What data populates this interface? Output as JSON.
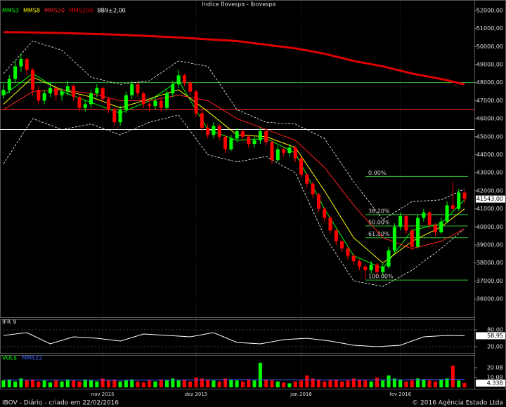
{
  "chart_data": [
    {
      "type": "candlestick",
      "title": "Indice Bovespa - Ibovespa",
      "up_color": "#00ff00",
      "down_color": "#ff0000",
      "xlim": [
        0,
        79
      ],
      "ylim": [
        35500,
        52500
      ],
      "xticks": [
        {
          "value": 17,
          "label": "nov 2015"
        },
        {
          "value": 33,
          "label": "dez 2015"
        },
        {
          "value": 51,
          "label": "jan 2016"
        },
        {
          "value": 68,
          "label": "fev 2016"
        }
      ],
      "yticks": [
        {
          "value": 52000,
          "label": "52000,00"
        },
        {
          "value": 51000,
          "label": "51000,00"
        },
        {
          "value": 50000,
          "label": "50000,00"
        },
        {
          "value": 49000,
          "label": "49000,00"
        },
        {
          "value": 48000,
          "label": "48000,00"
        },
        {
          "value": 47000,
          "label": "47000,00"
        },
        {
          "value": 46000,
          "label": "46000,00"
        },
        {
          "value": 45000,
          "label": "45000,00"
        },
        {
          "value": 44000,
          "label": "44000,00"
        },
        {
          "value": 43000,
          "label": "43000,00"
        },
        {
          "value": 42000,
          "label": "42000,00"
        },
        {
          "value": 41000,
          "label": "41000,00"
        },
        {
          "value": 40000,
          "label": "40000,00"
        },
        {
          "value": 39000,
          "label": "39000,00"
        },
        {
          "value": 38000,
          "label": "38000,00"
        },
        {
          "value": 37000,
          "label": "37000,00"
        },
        {
          "value": 36000,
          "label": "36000,00"
        }
      ],
      "last_label": "41543,00",
      "ohlc": [
        [
          47300,
          47900,
          47100,
          47600
        ],
        [
          47600,
          48400,
          47400,
          48200
        ],
        [
          48200,
          49200,
          48000,
          48900
        ],
        [
          48900,
          49600,
          48600,
          49300
        ],
        [
          49300,
          49400,
          48400,
          48700
        ],
        [
          48700,
          48800,
          47300,
          47600
        ],
        [
          47600,
          47800,
          46800,
          47000
        ],
        [
          47000,
          47600,
          46800,
          47400
        ],
        [
          47400,
          48000,
          47200,
          47700
        ],
        [
          47700,
          47800,
          47000,
          47300
        ],
        [
          47300,
          47700,
          47000,
          47500
        ],
        [
          47500,
          48100,
          47300,
          47800
        ],
        [
          47800,
          47900,
          47000,
          47200
        ],
        [
          47200,
          47300,
          46400,
          46600
        ],
        [
          46600,
          47000,
          46400,
          46800
        ],
        [
          46800,
          47600,
          46600,
          47400
        ],
        [
          47400,
          47900,
          47200,
          47700
        ],
        [
          47700,
          47800,
          46900,
          47100
        ],
        [
          47100,
          47200,
          46300,
          46500
        ],
        [
          46500,
          46600,
          45600,
          45800
        ],
        [
          45800,
          46700,
          45600,
          46500
        ],
        [
          46500,
          47500,
          46300,
          47300
        ],
        [
          47300,
          48100,
          47100,
          47900
        ],
        [
          47900,
          48000,
          47200,
          47400
        ],
        [
          47400,
          47500,
          46600,
          46800
        ],
        [
          46800,
          47000,
          46400,
          46700
        ],
        [
          46700,
          47200,
          46500,
          47000
        ],
        [
          47000,
          47100,
          46400,
          46600
        ],
        [
          46600,
          47600,
          46500,
          47400
        ],
        [
          47400,
          48100,
          47200,
          47900
        ],
        [
          47900,
          48700,
          47700,
          48400
        ],
        [
          48400,
          48500,
          47800,
          48000
        ],
        [
          48000,
          48100,
          47300,
          47500
        ],
        [
          47500,
          47600,
          46100,
          46300
        ],
        [
          46300,
          46500,
          45300,
          45500
        ],
        [
          45500,
          45700,
          44900,
          45100
        ],
        [
          45100,
          45800,
          44900,
          45600
        ],
        [
          45600,
          45700,
          44800,
          45000
        ],
        [
          45000,
          45100,
          44100,
          44300
        ],
        [
          44300,
          45100,
          44200,
          44900
        ],
        [
          44900,
          45500,
          44700,
          45300
        ],
        [
          45300,
          45400,
          44800,
          45000
        ],
        [
          45000,
          45100,
          44400,
          44600
        ],
        [
          44600,
          45000,
          44400,
          44800
        ],
        [
          44800,
          45500,
          44600,
          45300
        ],
        [
          45300,
          45400,
          44500,
          44700
        ],
        [
          44700,
          44800,
          43500,
          43700
        ],
        [
          43700,
          44500,
          43600,
          44300
        ],
        [
          44300,
          44400,
          43900,
          44100
        ],
        [
          44100,
          44600,
          43900,
          44400
        ],
        [
          44400,
          44500,
          43600,
          43800
        ],
        [
          43800,
          43900,
          42700,
          42900
        ],
        [
          42900,
          43000,
          42200,
          42400
        ],
        [
          42400,
          42500,
          41600,
          41800
        ],
        [
          41800,
          41900,
          40800,
          41000
        ],
        [
          41000,
          41100,
          40300,
          40500
        ],
        [
          40500,
          40600,
          39600,
          39800
        ],
        [
          39800,
          39900,
          39000,
          39200
        ],
        [
          39200,
          39300,
          38600,
          38800
        ],
        [
          38800,
          38900,
          38200,
          38400
        ],
        [
          38400,
          38500,
          37900,
          38100
        ],
        [
          38100,
          38200,
          37600,
          37800
        ],
        [
          37800,
          37900,
          37100,
          37600
        ],
        [
          37600,
          38100,
          37400,
          37900
        ],
        [
          37900,
          38000,
          37300,
          37500
        ],
        [
          37500,
          38000,
          37300,
          37800
        ],
        [
          37800,
          38900,
          37700,
          38700
        ],
        [
          38700,
          40200,
          38600,
          40000
        ],
        [
          40000,
          40800,
          39800,
          40600
        ],
        [
          40600,
          40700,
          39600,
          39800
        ],
        [
          39800,
          39900,
          38700,
          38900
        ],
        [
          38900,
          40700,
          38800,
          40500
        ],
        [
          40500,
          41000,
          40300,
          40800
        ],
        [
          40800,
          40900,
          39900,
          40100
        ],
        [
          40100,
          40200,
          39500,
          39700
        ],
        [
          39700,
          40500,
          39600,
          40300
        ],
        [
          40300,
          41400,
          40200,
          41200
        ],
        [
          41200,
          42500,
          40900,
          41000
        ],
        [
          41000,
          42100,
          40900,
          41900
        ],
        [
          41900,
          42000,
          41300,
          41543
        ]
      ],
      "line_x": [
        0,
        5,
        10,
        15,
        20,
        25,
        30,
        35,
        40,
        45,
        50,
        55,
        60,
        65,
        70,
        75,
        79
      ],
      "lines": [
        {
          "name": "MMS3",
          "color": "#00ff00",
          "line_width": 1,
          "values": [
            47300,
            48500,
            47500,
            46900,
            46300,
            47000,
            48100,
            45400,
            44800,
            44900,
            44100,
            41000,
            38400,
            37700,
            39800,
            40200,
            41500
          ]
        },
        {
          "name": "MMS8",
          "color": "#ffff00",
          "line_width": 1,
          "values": [
            46800,
            48300,
            47600,
            47200,
            46600,
            47100,
            47600,
            46400,
            45100,
            45000,
            44400,
            42000,
            39400,
            38000,
            39200,
            40000,
            41000
          ]
        },
        {
          "name": "MMS20",
          "color": "#ff2020",
          "line_width": 1,
          "values": [
            46500,
            47500,
            47600,
            47400,
            47000,
            47000,
            47300,
            47000,
            46000,
            45400,
            44800,
            43300,
            41200,
            39400,
            38800,
            39200,
            39900
          ]
        },
        {
          "name": "MMS200",
          "color": "#e00000",
          "line_width": 3,
          "values": [
            50800,
            50780,
            50750,
            50700,
            50650,
            50580,
            50500,
            50400,
            50300,
            50100,
            49900,
            49600,
            49200,
            48900,
            48500,
            48200,
            47900
          ]
        }
      ],
      "bands": {
        "name": "BB9±2,00",
        "color": "#ffffff",
        "upper": [
          48500,
          50300,
          49800,
          48300,
          47900,
          48100,
          49200,
          48900,
          46500,
          45800,
          45700,
          44900,
          42500,
          40400,
          41400,
          41500,
          42100
        ],
        "lower": [
          43500,
          46000,
          45400,
          45700,
          45100,
          45800,
          46200,
          44000,
          43600,
          43900,
          43000,
          39500,
          37000,
          36700,
          37600,
          38800,
          39900
        ]
      },
      "levels": [
        {
          "value": 48000,
          "color": "#30c030"
        },
        {
          "value": 46500,
          "color": "#ff3030"
        },
        {
          "value": 45400,
          "color": "#ffffff"
        }
      ],
      "fib_color": "#30c030",
      "fib": [
        {
          "label": "0.00%",
          "value": 42800
        },
        {
          "label": "38.20%",
          "value": 40680
        },
        {
          "label": "50.00%",
          "value": 40050
        },
        {
          "label": "61.80%",
          "value": 39400
        },
        {
          "label": "100.00%",
          "value": 37050
        }
      ]
    },
    {
      "type": "line",
      "label": "IFR 9",
      "color": "#ffffff",
      "ylim": [
        0,
        100
      ],
      "yticks": [
        {
          "value": 80,
          "label": "80,00"
        },
        {
          "value": 20,
          "label": "20,00"
        }
      ],
      "last_label": "58,95",
      "x": [
        0,
        4,
        8,
        12,
        16,
        20,
        24,
        28,
        32,
        36,
        40,
        44,
        48,
        52,
        56,
        60,
        64,
        68,
        72,
        76,
        79
      ],
      "values": [
        60,
        70,
        30,
        55,
        50,
        40,
        65,
        60,
        55,
        70,
        35,
        30,
        45,
        50,
        40,
        25,
        20,
        25,
        55,
        60,
        58.95
      ]
    },
    {
      "type": "bar",
      "label": "VOL$",
      "label_color": "#00ff00",
      "ylim": [
        0,
        28.5
      ],
      "yticks": [
        {
          "value": 20,
          "label": "20.0B"
        },
        {
          "value": 10,
          "label": "10.0B"
        }
      ],
      "last_label": "4.33B",
      "values": [
        7,
        8,
        6,
        9,
        7,
        8,
        6,
        7,
        5,
        7,
        6,
        8,
        7,
        6,
        8,
        7,
        6,
        9,
        7,
        8,
        6,
        7,
        8,
        6,
        5,
        7,
        6,
        8,
        7,
        9,
        7,
        8,
        6,
        10,
        9,
        8,
        7,
        6,
        9,
        8,
        7,
        6,
        8,
        7,
        25,
        8,
        7,
        6,
        5,
        4,
        6,
        7,
        12,
        9,
        8,
        6,
        7,
        8,
        6,
        7,
        9,
        8,
        7,
        6,
        10,
        7,
        12,
        9,
        8,
        6,
        7,
        9,
        8,
        7,
        6,
        8,
        9,
        22,
        7,
        4.33
      ],
      "ma": {
        "name": "MMS22",
        "color": "#4060ff",
        "x": [
          0,
          20,
          40,
          60,
          79
        ],
        "values": [
          7.5,
          7.2,
          7.8,
          7.6,
          8.0
        ]
      }
    }
  ],
  "footer": {
    "left": "IBOV - Diário - criado em 22/02/2016",
    "right": "© 2016 Agência Estado Ltda"
  }
}
